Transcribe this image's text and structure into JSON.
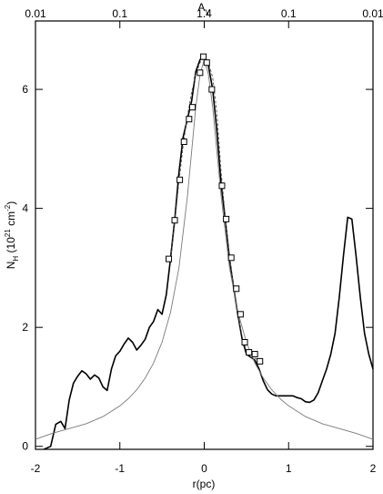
{
  "chart_data": {
    "type": "line",
    "title": "",
    "xlabel": "r(pc)",
    "ylabel_main": "N",
    "ylabel_sub": "H",
    "ylabel_rest": " (10",
    "ylabel_sup1": "21",
    "ylabel_unit": " cm",
    "ylabel_sup2": "-2",
    "ylabel_close": ")",
    "top_label_main": "A",
    "top_label_sub": "V",
    "xlim": [
      -2,
      2
    ],
    "ylim": [
      -0.05,
      7.15
    ],
    "x_ticks": [
      {
        "value": -2,
        "label": "-2"
      },
      {
        "value": -1,
        "label": "-1"
      },
      {
        "value": 0,
        "label": "0"
      },
      {
        "value": 1,
        "label": "1"
      },
      {
        "value": 2,
        "label": "2"
      }
    ],
    "y_ticks": [
      {
        "value": 0,
        "label": "0"
      },
      {
        "value": 2,
        "label": "2"
      },
      {
        "value": 4,
        "label": "4"
      },
      {
        "value": 6,
        "label": "6"
      }
    ],
    "top_ticks": [
      {
        "value": -2,
        "label": "0.01"
      },
      {
        "value": -1,
        "label": "0.1"
      },
      {
        "value": 0,
        "label": "1.4"
      },
      {
        "value": 1,
        "label": "0.1"
      },
      {
        "value": 2,
        "label": "0.01"
      }
    ],
    "grid": false,
    "series": [
      {
        "style": "solid-thick",
        "color": "#000000",
        "x": [
          -1.9,
          -1.82,
          -1.76,
          -1.7,
          -1.65,
          -1.6,
          -1.55,
          -1.5,
          -1.45,
          -1.4,
          -1.35,
          -1.3,
          -1.25,
          -1.2,
          -1.15,
          -1.1,
          -1.05,
          -1.0,
          -0.95,
          -0.9,
          -0.85,
          -0.8,
          -0.75,
          -0.7,
          -0.65,
          -0.6,
          -0.55,
          -0.5,
          -0.45,
          -0.4,
          -0.35,
          -0.3,
          -0.25,
          -0.2,
          -0.15,
          -0.1,
          -0.05,
          0.0,
          0.05,
          0.1,
          0.15,
          0.2,
          0.25,
          0.3,
          0.35,
          0.4,
          0.45,
          0.5,
          0.55,
          0.6,
          0.65,
          0.7,
          0.75,
          0.8,
          0.85,
          0.9,
          0.95,
          1.0,
          1.05,
          1.1,
          1.15,
          1.2,
          1.25,
          1.3,
          1.35,
          1.4,
          1.45,
          1.5,
          1.55,
          1.6,
          1.65,
          1.7,
          1.75,
          1.8,
          1.85,
          1.9,
          1.95,
          2.0
        ],
        "y": [
          -0.05,
          0.0,
          0.37,
          0.42,
          0.3,
          0.78,
          1.06,
          1.18,
          1.27,
          1.22,
          1.13,
          1.2,
          1.15,
          1.0,
          0.94,
          1.3,
          1.52,
          1.6,
          1.72,
          1.82,
          1.75,
          1.62,
          1.7,
          1.8,
          2.0,
          2.1,
          2.3,
          2.22,
          2.55,
          3.15,
          3.8,
          4.6,
          5.2,
          5.5,
          5.8,
          6.3,
          6.5,
          6.55,
          6.4,
          6.0,
          5.3,
          4.4,
          3.8,
          3.15,
          2.65,
          2.2,
          1.8,
          1.55,
          1.5,
          1.45,
          1.3,
          1.1,
          0.95,
          0.88,
          0.85,
          0.85,
          0.85,
          0.85,
          0.85,
          0.82,
          0.8,
          0.75,
          0.74,
          0.78,
          0.9,
          1.1,
          1.3,
          1.55,
          1.9,
          2.5,
          3.2,
          3.85,
          3.82,
          3.2,
          2.5,
          1.9,
          1.55,
          1.3
        ]
      },
      {
        "style": "solid-thin",
        "color": "#7a7a7a",
        "x": [
          -2.0,
          -1.8,
          -1.6,
          -1.4,
          -1.2,
          -1.0,
          -0.9,
          -0.8,
          -0.7,
          -0.6,
          -0.5,
          -0.4,
          -0.3,
          -0.2,
          -0.1,
          -0.05,
          0.0,
          0.05,
          0.1,
          0.2,
          0.3,
          0.4,
          0.5,
          0.6,
          0.7,
          0.8,
          0.9,
          1.0,
          1.2,
          1.4,
          1.6,
          1.8,
          2.0
        ],
        "y": [
          0.12,
          0.22,
          0.3,
          0.38,
          0.5,
          0.68,
          0.8,
          0.95,
          1.15,
          1.4,
          1.75,
          2.25,
          3.0,
          4.2,
          5.7,
          6.25,
          6.5,
          6.25,
          5.7,
          4.2,
          3.0,
          2.25,
          1.75,
          1.4,
          1.15,
          0.95,
          0.8,
          0.68,
          0.5,
          0.38,
          0.3,
          0.22,
          0.12
        ]
      },
      {
        "style": "dashed",
        "color": "#555555",
        "x": [
          -0.4,
          -0.35,
          -0.3,
          -0.25,
          -0.2,
          -0.15,
          -0.1,
          -0.05,
          0.0,
          0.05,
          0.1,
          0.15,
          0.2,
          0.25,
          0.3,
          0.35,
          0.4,
          0.45,
          0.5,
          0.55,
          0.6,
          0.65,
          0.7
        ],
        "y": [
          3.1,
          3.75,
          4.45,
          5.05,
          5.55,
          5.95,
          6.25,
          6.45,
          6.55,
          6.45,
          6.2,
          5.6,
          4.6,
          3.85,
          3.2,
          2.65,
          2.2,
          1.85,
          1.6,
          1.5,
          1.48,
          1.45,
          1.4
        ]
      }
    ],
    "markers": {
      "shape": "square-open",
      "points": [
        {
          "x": -0.42,
          "y": 3.15
        },
        {
          "x": -0.35,
          "y": 3.8
        },
        {
          "x": -0.29,
          "y": 4.48
        },
        {
          "x": -0.24,
          "y": 5.12
        },
        {
          "x": -0.18,
          "y": 5.5
        },
        {
          "x": -0.14,
          "y": 5.7
        },
        {
          "x": -0.05,
          "y": 6.28
        },
        {
          "x": -0.01,
          "y": 6.55
        },
        {
          "x": 0.03,
          "y": 6.45
        },
        {
          "x": 0.09,
          "y": 6.0
        },
        {
          "x": 0.21,
          "y": 4.38
        },
        {
          "x": 0.26,
          "y": 3.82
        },
        {
          "x": 0.32,
          "y": 3.17
        },
        {
          "x": 0.38,
          "y": 2.65
        },
        {
          "x": 0.43,
          "y": 2.22
        },
        {
          "x": 0.48,
          "y": 1.75
        },
        {
          "x": 0.53,
          "y": 1.58
        },
        {
          "x": 0.6,
          "y": 1.55
        },
        {
          "x": 0.66,
          "y": 1.43
        }
      ]
    }
  }
}
